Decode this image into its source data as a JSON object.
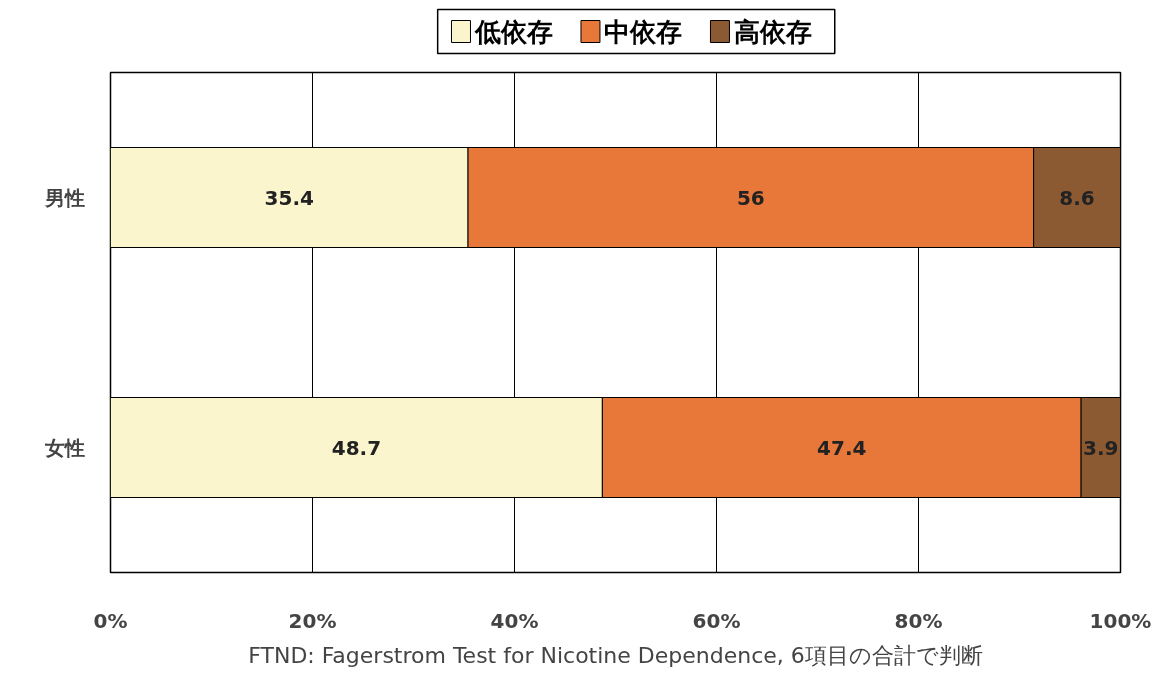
{
  "chart_data": {
    "type": "bar",
    "orientation": "horizontal",
    "stacked": true,
    "categories": [
      "男性",
      "女性"
    ],
    "series": [
      {
        "name": "低依存",
        "color": "#faf5cc",
        "values": [
          35.4,
          48.7
        ]
      },
      {
        "name": "中依存",
        "color": "#e8783a",
        "values": [
          56,
          47.4
        ]
      },
      {
        "name": "高依存",
        "color": "#8c5a32",
        "values": [
          8.6,
          3.9
        ]
      }
    ],
    "xlim": [
      0,
      100
    ],
    "xticks": [
      {
        "value": 0,
        "label": "0%"
      },
      {
        "value": 20,
        "label": "20%"
      },
      {
        "value": 40,
        "label": "40%"
      },
      {
        "value": 60,
        "label": "60%"
      },
      {
        "value": 80,
        "label": "80%"
      },
      {
        "value": 100,
        "label": "100%"
      }
    ],
    "grid": "x",
    "legend": "top",
    "data_labels": true,
    "annotations": [
      "FTND: Fagerstrom Test for Nicotine Dependence, 6項目の合計で判断"
    ]
  }
}
